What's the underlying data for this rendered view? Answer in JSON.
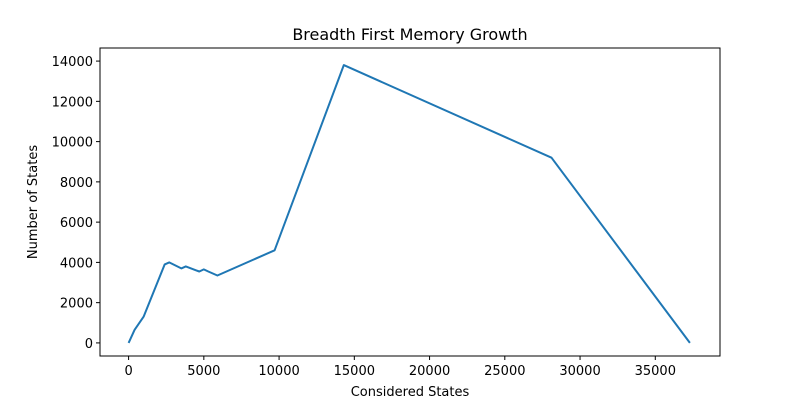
{
  "chart_data": {
    "type": "line",
    "title": "Breadth First Memory Growth",
    "xlabel": "Considered States",
    "ylabel": "Number of States",
    "xlim": [
      -1900,
      39300
    ],
    "ylim": [
      -650,
      14650
    ],
    "xticks": [
      0,
      5000,
      10000,
      15000,
      20000,
      25000,
      30000,
      35000
    ],
    "yticks": [
      0,
      2000,
      4000,
      6000,
      8000,
      10000,
      12000,
      14000
    ],
    "grid": false,
    "legend": "none",
    "series_color": "#1f77b4",
    "series": [
      {
        "x": [
          0,
          400,
          1000,
          2400,
          2700,
          3500,
          3800,
          4500,
          4700,
          5000,
          5300,
          5900,
          9700,
          14300,
          28100,
          37300
        ],
        "y": [
          0,
          650,
          1300,
          3900,
          4000,
          3700,
          3800,
          3600,
          3550,
          3650,
          3550,
          3350,
          4600,
          13800,
          9200,
          0
        ]
      }
    ]
  }
}
